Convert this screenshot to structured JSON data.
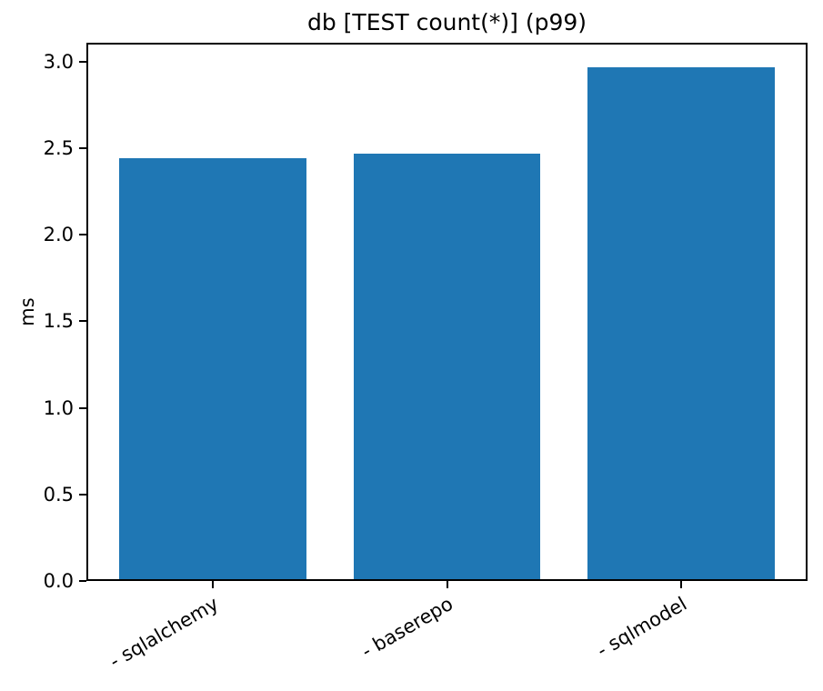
{
  "chart_data": {
    "type": "bar",
    "title": "db [TEST count(*)] (p99)",
    "xlabel": "",
    "ylabel": "ms",
    "categories": [
      "- sqlalchemy",
      "- baserepo",
      "- sqlmodel"
    ],
    "values": [
      2.43,
      2.46,
      2.96
    ],
    "ylim": [
      0,
      3.11
    ],
    "yticks": [
      0.0,
      0.5,
      1.0,
      1.5,
      2.0,
      2.5,
      3.0
    ],
    "ytick_labels": [
      "0.0",
      "0.5",
      "1.0",
      "1.5",
      "2.0",
      "2.5",
      "3.0"
    ],
    "bar_color": "#1f77b4",
    "bar_width_fraction": 0.8,
    "x_margin_fraction": 0.05,
    "xtick_rotation_deg": 30,
    "grid": false,
    "legend": null,
    "spine_color": "#000000",
    "background_color": "#ffffff"
  }
}
